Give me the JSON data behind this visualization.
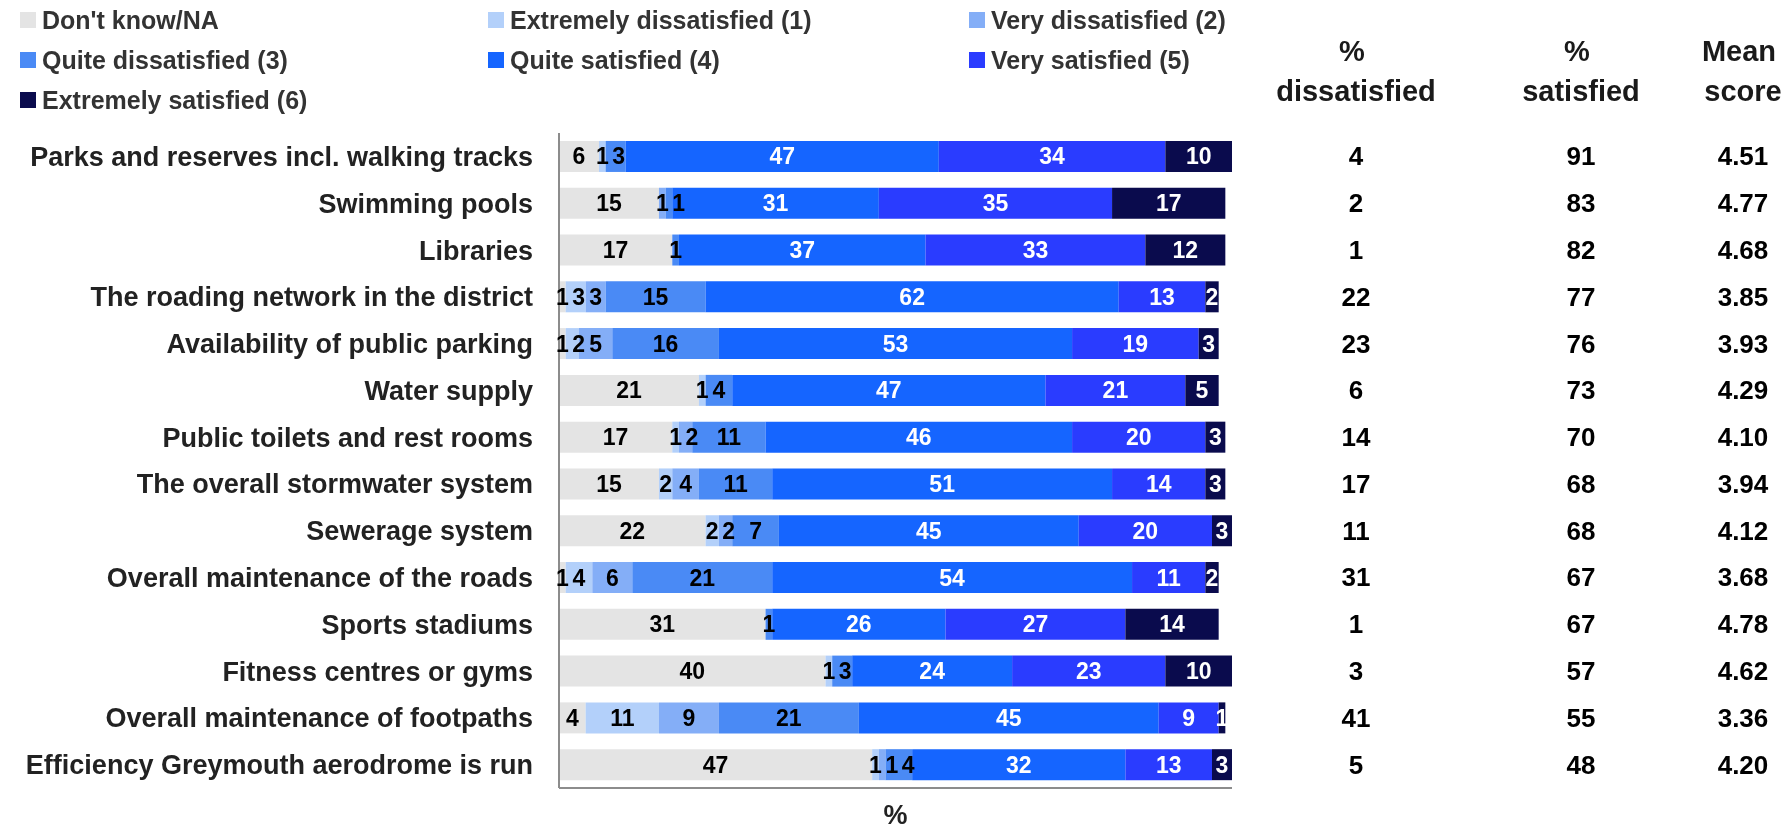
{
  "chart_data": [
    {
      "type": "bar",
      "orientation": "horizontal",
      "stacked": true,
      "data_labels": true,
      "legend": "top",
      "tick_labels": "y",
      "xlabel": "%",
      "categories": [
        "Parks and reserves incl. walking tracks",
        "Swimming pools",
        "Libraries",
        "The roading network in the district",
        "Availability of public parking",
        "Water supply",
        "Public toilets and rest rooms",
        "The overall stormwater system",
        "Sewerage system",
        "Overall maintenance of the roads",
        "Sports stadiums",
        "Fitness centres or gyms",
        "Overall maintenance of footpaths",
        "Efficiency Greymouth aerodrome is run"
      ],
      "series": [
        {
          "name": "Don't know/NA",
          "color": "#e4e4e4",
          "values": [
            6,
            15,
            17,
            1,
            1,
            21,
            17,
            15,
            22,
            1,
            31,
            40,
            4,
            47
          ]
        },
        {
          "name": "Extremely dissatisfied (1)",
          "color": "#b3d0fa",
          "values": [
            1,
            null,
            null,
            3,
            2,
            1,
            1,
            2,
            2,
            4,
            null,
            1,
            11,
            1
          ]
        },
        {
          "name": "Very dissatisfied (2)",
          "color": "#84aef7",
          "values": [
            null,
            1,
            null,
            3,
            5,
            null,
            2,
            4,
            2,
            6,
            null,
            null,
            9,
            1
          ]
        },
        {
          "name": "Quite dissatisfied (3)",
          "color": "#4a8af5",
          "values": [
            3,
            1,
            1,
            15,
            16,
            4,
            11,
            11,
            7,
            21,
            1,
            3,
            21,
            4
          ]
        },
        {
          "name": "Quite satisfied (4)",
          "color": "#1565ff",
          "values": [
            47,
            31,
            37,
            62,
            53,
            47,
            46,
            51,
            45,
            54,
            26,
            24,
            45,
            32
          ]
        },
        {
          "name": "Very satisfied (5)",
          "color": "#2a3cff",
          "values": [
            34,
            35,
            33,
            13,
            19,
            21,
            20,
            14,
            20,
            11,
            27,
            23,
            9,
            13
          ]
        },
        {
          "name": "Extremely satisfied (6)",
          "color": "#0a0b4d",
          "values": [
            10,
            17,
            12,
            2,
            3,
            5,
            3,
            3,
            3,
            2,
            14,
            10,
            1,
            3
          ]
        }
      ]
    },
    {
      "type": "other",
      "annotations": [
        "% dissatisfied",
        "% satisfied",
        "Mean score",
        "4",
        "91",
        "4.51",
        "2",
        "83",
        "4.77",
        "1",
        "82",
        "4.68",
        "22",
        "77",
        "3.85",
        "23",
        "76",
        "3.93",
        "6",
        "73",
        "4.29",
        "14",
        "70",
        "4.10",
        "17",
        "68",
        "3.94",
        "11",
        "68",
        "4.12",
        "31",
        "67",
        "3.68",
        "1",
        "67",
        "4.78",
        "3",
        "57",
        "4.62",
        "41",
        "55",
        "3.36",
        "5",
        "48",
        "4.20"
      ]
    }
  ]
}
